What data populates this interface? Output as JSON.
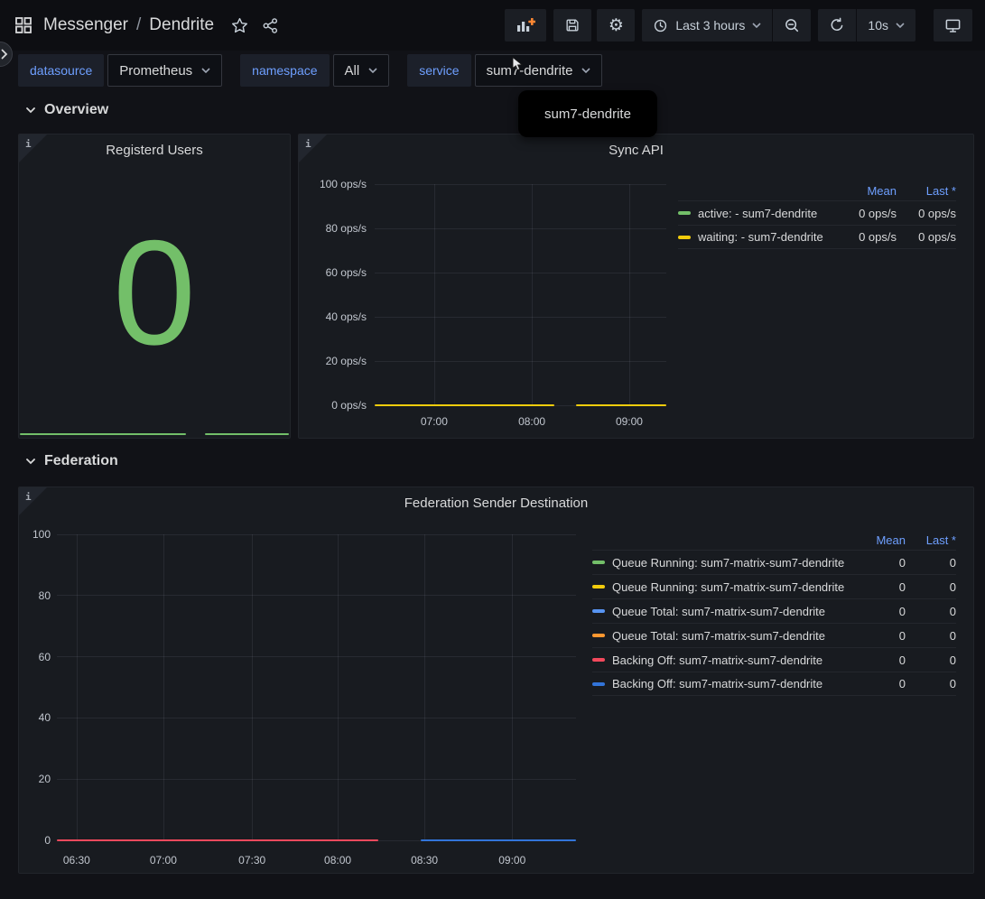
{
  "icons": {
    "info": "i",
    "gear": "⚙"
  },
  "header": {
    "breadcrumb": {
      "app": "Messenger",
      "separator": "/",
      "page": "Dendrite"
    },
    "time_range": "Last 3 hours",
    "refresh_interval": "10s"
  },
  "variables": [
    {
      "label": "datasource",
      "value": "Prometheus"
    },
    {
      "label": "namespace",
      "value": "All"
    },
    {
      "label": "service",
      "value": "sum7-dendrite"
    }
  ],
  "tooltip": {
    "text": "sum7-dendrite"
  },
  "sections": {
    "overview": "Overview",
    "federation": "Federation"
  },
  "panels": {
    "registered_users": {
      "title": "Registerd Users",
      "value": "0",
      "value_color": "#73BF69",
      "sparkline": {
        "color": "#73BF69",
        "segments": [
          {
            "f1": 0,
            "f2": 0.619
          },
          {
            "f1": 0.689,
            "f2": 1
          }
        ]
      }
    }
  },
  "chart_data": [
    {
      "type": "line",
      "title": "Sync API",
      "unit": "ops/s",
      "ylim": [
        0,
        100
      ],
      "grid": true,
      "legend_position": "right-table",
      "y_ticks": [
        "100 ops/s",
        "80 ops/s",
        "60 ops/s",
        "40 ops/s",
        "20 ops/s",
        "0 ops/s"
      ],
      "x_ticks": [
        {
          "label": "07:00",
          "f": 0.204
        },
        {
          "label": "08:00",
          "f": 0.539
        },
        {
          "label": "09:00",
          "f": 0.873
        }
      ],
      "series": [
        {
          "name": "active: - sum7-dendrite",
          "color": "#73BF69",
          "values": [
            0,
            0,
            0
          ]
        },
        {
          "name": "waiting: - sum7-dendrite",
          "color": "#F2CC0C",
          "values": [
            0,
            0,
            0
          ]
        }
      ],
      "segments": [
        {
          "color": "#F2CC0C",
          "y": 1,
          "f1": 0,
          "f2": 0.616
        },
        {
          "color": "#F2CC0C",
          "y": 1,
          "f1": 0.69,
          "f2": 1
        }
      ],
      "legend": {
        "headers": [
          "Mean",
          "Last *"
        ],
        "rows": [
          {
            "color": "#73BF69",
            "label": "active: - sum7-dendrite",
            "mean": "0 ops/s",
            "last": "0 ops/s"
          },
          {
            "color": "#F2CC0C",
            "label": "waiting: - sum7-dendrite",
            "mean": "0 ops/s",
            "last": "0 ops/s"
          }
        ]
      }
    },
    {
      "type": "line",
      "title": "Federation Sender Destination",
      "ylim": [
        0,
        100
      ],
      "grid": true,
      "legend_position": "right-table",
      "y_ticks": [
        "100",
        "80",
        "60",
        "40",
        "20",
        "0"
      ],
      "x_ticks": [
        {
          "label": "06:30",
          "f": 0.038
        },
        {
          "label": "07:00",
          "f": 0.205
        },
        {
          "label": "07:30",
          "f": 0.376
        },
        {
          "label": "08:00",
          "f": 0.541
        },
        {
          "label": "08:30",
          "f": 0.708
        },
        {
          "label": "09:00",
          "f": 0.877
        }
      ],
      "series": [
        {
          "name": "Queue Running: sum7-matrix-sum7-dendrite",
          "color": "#73BF69",
          "values": [
            0,
            0,
            0,
            0,
            0,
            0
          ]
        },
        {
          "name": "Queue Running: sum7-matrix-sum7-dendrite",
          "color": "#F2CC0C",
          "values": [
            0,
            0,
            0,
            0,
            0,
            0
          ]
        },
        {
          "name": "Queue Total: sum7-matrix-sum7-dendrite",
          "color": "#5794F2",
          "values": [
            0,
            0,
            0,
            0,
            0,
            0
          ]
        },
        {
          "name": "Queue Total: sum7-matrix-sum7-dendrite",
          "color": "#FF9830",
          "values": [
            0,
            0,
            0,
            0,
            0,
            0
          ]
        },
        {
          "name": "Backing Off: sum7-matrix-sum7-dendrite",
          "color": "#F2495C",
          "values": [
            0,
            0,
            0,
            0,
            0,
            0
          ]
        },
        {
          "name": "Backing Off: sum7-matrix-sum7-dendrite",
          "color": "#3274D9",
          "values": [
            0,
            0,
            0,
            0,
            0,
            0
          ]
        }
      ],
      "segments": [
        {
          "color": "#F2495C",
          "y": 1,
          "f1": 0,
          "f2": 0.619
        },
        {
          "color": "#3274D9",
          "y": 1,
          "f1": 0.701,
          "f2": 1
        }
      ],
      "legend": {
        "headers": [
          "Mean",
          "Last *"
        ],
        "rows": [
          {
            "color": "#73BF69",
            "label": "Queue Running: sum7-matrix-sum7-dendrite",
            "mean": "0",
            "last": "0"
          },
          {
            "color": "#F2CC0C",
            "label": "Queue Running: sum7-matrix-sum7-dendrite",
            "mean": "0",
            "last": "0"
          },
          {
            "color": "#5794F2",
            "label": "Queue Total: sum7-matrix-sum7-dendrite",
            "mean": "0",
            "last": "0"
          },
          {
            "color": "#FF9830",
            "label": "Queue Total: sum7-matrix-sum7-dendrite",
            "mean": "0",
            "last": "0"
          },
          {
            "color": "#F2495C",
            "label": "Backing Off: sum7-matrix-sum7-dendrite",
            "mean": "0",
            "last": "0"
          },
          {
            "color": "#3274D9",
            "label": "Backing Off: sum7-matrix-sum7-dendrite",
            "mean": "0",
            "last": "0"
          }
        ]
      }
    }
  ],
  "colors": {
    "green": "#73BF69",
    "yellow": "#F2CC0C",
    "blue": "#5794F2",
    "orange": "#FF9830",
    "red": "#F2495C",
    "dark_blue": "#3274D9",
    "legend_header": "#6E9FFF",
    "stat_green": "#73BF69",
    "panel_bg": "#181B20",
    "page_bg": "#111217"
  }
}
